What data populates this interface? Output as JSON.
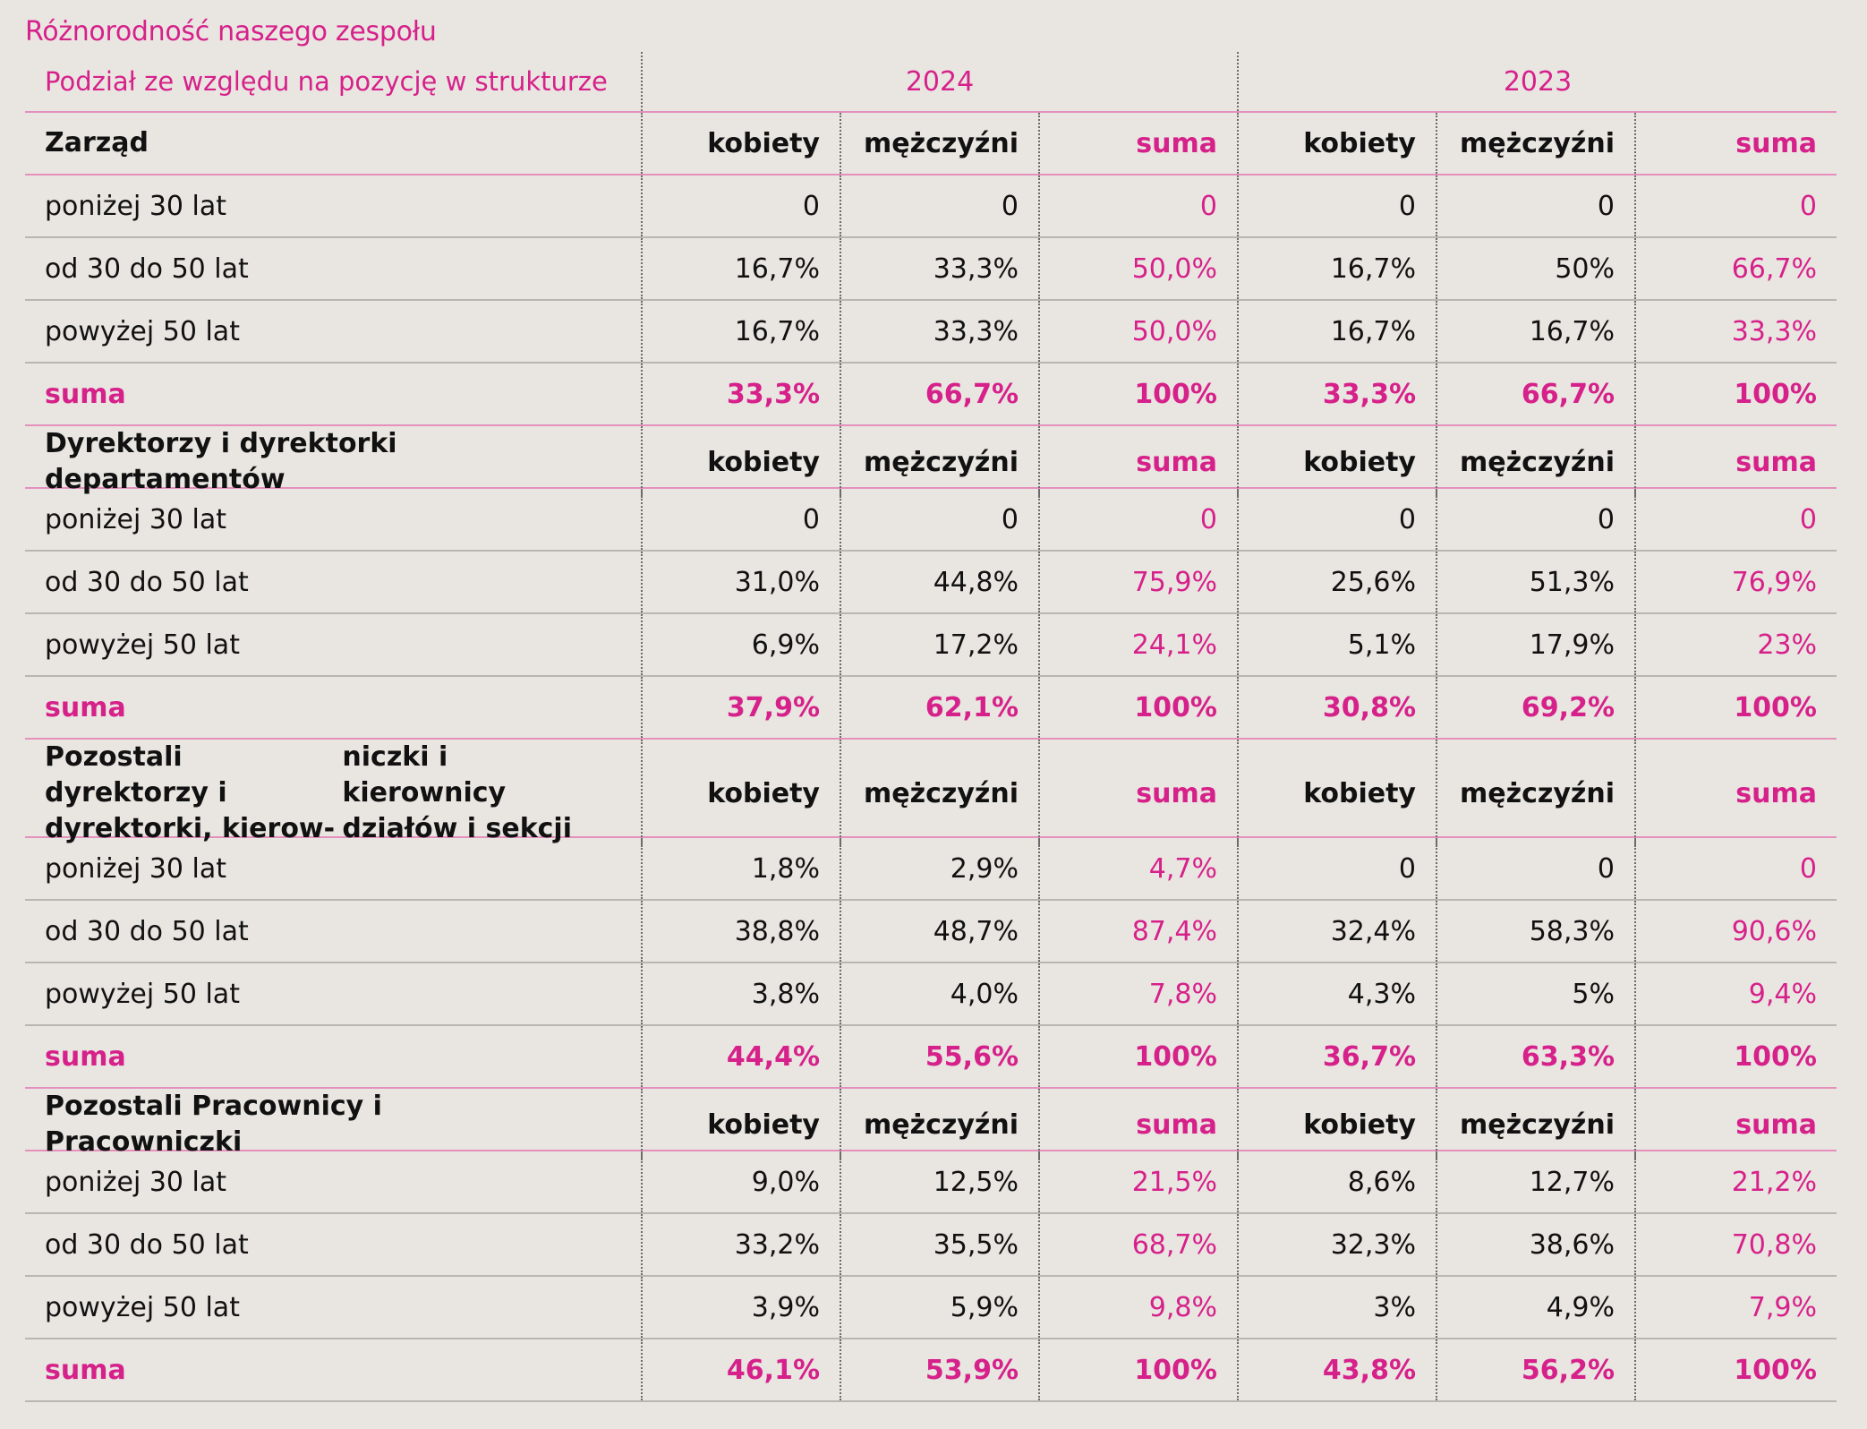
{
  "title": "Różnorodność naszego zespołu",
  "header": {
    "label": "Podział ze względu na pozycję w strukturze",
    "years": [
      "2024",
      "2023"
    ]
  },
  "colors": {
    "accent": "#d6218a",
    "accent_line": "#e58fbd",
    "row_line": "#b9b6b1",
    "background": "#e9e6e1",
    "text": "#111111"
  },
  "column_labels": {
    "women": "kobiety",
    "men": "mężczyźni",
    "sum": "suma"
  },
  "sections": [
    {
      "title": "Zarząd",
      "rows": [
        {
          "label": "poniżej 30 lat",
          "values": [
            "0",
            "0",
            "0",
            "0",
            "0",
            "0"
          ]
        },
        {
          "label": "od 30 do 50 lat",
          "values": [
            "16,7%",
            "33,3%",
            "50,0%",
            "16,7%",
            "50%",
            "66,7%"
          ]
        },
        {
          "label": "powyżej 50 lat",
          "values": [
            "16,7%",
            "33,3%",
            "50,0%",
            "16,7%",
            "16,7%",
            "33,3%"
          ]
        }
      ],
      "sum": {
        "label": "suma",
        "values": [
          "33,3%",
          "66,7%",
          "100%",
          "33,3%",
          "66,7%",
          "100%"
        ]
      }
    },
    {
      "title": "Dyrektorzy i dyrektorki departamentów",
      "rows": [
        {
          "label": "poniżej 30 lat",
          "values": [
            "0",
            "0",
            "0",
            "0",
            "0",
            "0"
          ]
        },
        {
          "label": "od 30 do 50 lat",
          "values": [
            "31,0%",
            "44,8%",
            "75,9%",
            "25,6%",
            "51,3%",
            "76,9%"
          ]
        },
        {
          "label": "powyżej 50 lat",
          "values": [
            "6,9%",
            "17,2%",
            "24,1%",
            "5,1%",
            "17,9%",
            "23%"
          ]
        }
      ],
      "sum": {
        "label": "suma",
        "values": [
          "37,9%",
          "62,1%",
          "100%",
          "30,8%",
          "69,2%",
          "100%"
        ]
      }
    },
    {
      "title": "Pozostali dyrektorzy i dyrektorki, kierow-niczki i kierownicy działów i sekcji",
      "title_lines": [
        "Pozostali dyrektorzy i dyrektorki, kierow-",
        "niczki i kierownicy działów i sekcji"
      ],
      "rows": [
        {
          "label": "poniżej 30 lat",
          "values": [
            "1,8%",
            "2,9%",
            "4,7%",
            "0",
            "0",
            "0"
          ]
        },
        {
          "label": "od 30 do 50 lat",
          "values": [
            "38,8%",
            "48,7%",
            "87,4%",
            "32,4%",
            "58,3%",
            "90,6%"
          ]
        },
        {
          "label": "powyżej 50 lat",
          "values": [
            "3,8%",
            "4,0%",
            "7,8%",
            "4,3%",
            "5%",
            "9,4%"
          ]
        }
      ],
      "sum": {
        "label": "suma",
        "values": [
          "44,4%",
          "55,6%",
          "100%",
          "36,7%",
          "63,3%",
          "100%"
        ]
      }
    },
    {
      "title": "Pozostali Pracownicy i Pracowniczki",
      "rows": [
        {
          "label": "poniżej 30 lat",
          "values": [
            "9,0%",
            "12,5%",
            "21,5%",
            "8,6%",
            "12,7%",
            "21,2%"
          ]
        },
        {
          "label": "od 30 do 50 lat",
          "values": [
            "33,2%",
            "35,5%",
            "68,7%",
            "32,3%",
            "38,6%",
            "70,8%"
          ]
        },
        {
          "label": "powyżej 50 lat",
          "values": [
            "3,9%",
            "5,9%",
            "9,8%",
            "3%",
            "4,9%",
            "7,9%"
          ]
        }
      ],
      "sum": {
        "label": "suma",
        "values": [
          "46,1%",
          "53,9%",
          "100%",
          "43,8%",
          "56,2%",
          "100%"
        ]
      }
    }
  ]
}
